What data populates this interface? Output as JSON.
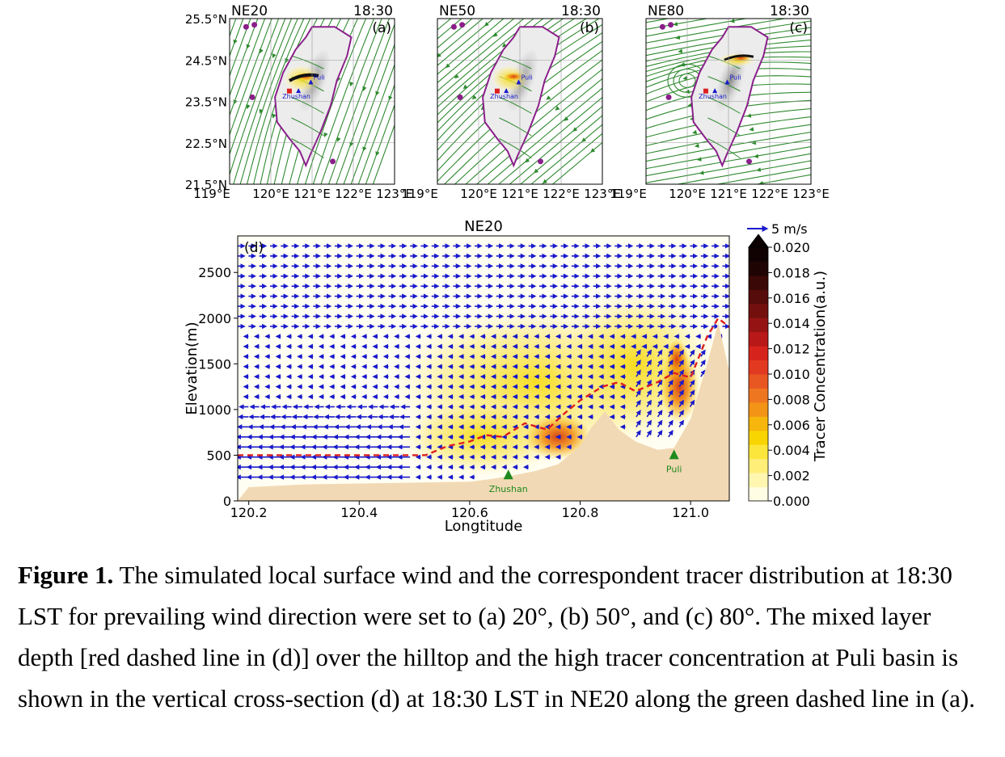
{
  "colors": {
    "land": "#f2d9b5",
    "wind": "#2f8a2f",
    "quiver": "#1a1acc",
    "mixed_layer": "#dd2020",
    "coast": "#8a1f8a",
    "station_marker": "#1e8a1e"
  },
  "chart_data": [
    {
      "type": "map",
      "panel_tag": "(a)",
      "case": "NE20",
      "time": "18:30",
      "xlim": [
        119,
        123
      ],
      "ylim": [
        21.5,
        25.5
      ],
      "x_ticks": [
        "119°E",
        "120°E",
        "121°E",
        "122°E",
        "123°E"
      ],
      "y_ticks": [
        "25.5°N",
        "24.5°N",
        "23.5°N",
        "22.5°N",
        "21.5°N"
      ],
      "prevailing_wind_deg": 20,
      "sites": [
        {
          "label": "Puli",
          "lon": 120.97,
          "lat": 23.97
        },
        {
          "label": "Zhushan",
          "lon": 120.67,
          "lat": 23.76
        }
      ]
    },
    {
      "type": "map",
      "panel_tag": "(b)",
      "case": "NE50",
      "time": "18:30",
      "xlim": [
        119,
        123
      ],
      "ylim": [
        21.5,
        25.5
      ],
      "x_ticks": [
        "119°E",
        "120°E",
        "121°E",
        "122°E",
        "123°E"
      ],
      "prevailing_wind_deg": 50,
      "sites": [
        {
          "label": "Puli",
          "lon": 120.97,
          "lat": 23.97
        },
        {
          "label": "Zhushan",
          "lon": 120.67,
          "lat": 23.76
        }
      ]
    },
    {
      "type": "map",
      "panel_tag": "(c)",
      "case": "NE80",
      "time": "18:30",
      "xlim": [
        119,
        123
      ],
      "ylim": [
        21.5,
        25.5
      ],
      "x_ticks": [
        "119°E",
        "120°E",
        "121°E",
        "122°E",
        "123°E"
      ],
      "prevailing_wind_deg": 80,
      "sites": [
        {
          "label": "Puli",
          "lon": 120.97,
          "lat": 23.97
        },
        {
          "label": "Zhushan",
          "lon": 120.67,
          "lat": 23.76
        }
      ]
    },
    {
      "type": "cross-section",
      "panel_tag": "(d)",
      "title": "NE20",
      "xlabel": "Longtitude",
      "ylabel": "Elevation(m)",
      "xlim": [
        120.18,
        121.07
      ],
      "ylim": [
        0,
        2900
      ],
      "x_ticks": [
        120.2,
        120.4,
        120.6,
        120.8,
        121.0
      ],
      "x_tick_labels": [
        "120.2",
        "120.4",
        "120.6",
        "120.8",
        "121.0"
      ],
      "y_ticks": [
        0,
        500,
        1000,
        1500,
        2000,
        2500
      ],
      "y_tick_labels": [
        "0",
        "500",
        "1000",
        "1500",
        "2000",
        "2500"
      ],
      "terrain": {
        "lon": [
          120.18,
          120.2,
          120.3,
          120.4,
          120.5,
          120.6,
          120.64,
          120.68,
          120.72,
          120.76,
          120.8,
          120.82,
          120.845,
          120.87,
          120.9,
          120.94,
          120.97,
          121.0,
          121.03,
          121.05,
          121.07
        ],
        "elev": [
          0,
          150,
          180,
          190,
          200,
          210,
          240,
          280,
          330,
          400,
          600,
          800,
          980,
          780,
          650,
          560,
          580,
          900,
          1500,
          1950,
          1420
        ]
      },
      "mixed_layer_depth": {
        "lon": [
          120.18,
          120.35,
          120.52,
          120.56,
          120.6,
          120.63,
          120.66,
          120.7,
          120.74,
          120.77,
          120.8,
          120.84,
          120.87,
          120.9,
          120.94,
          120.97,
          121.0,
          121.03,
          121.05,
          121.07
        ],
        "elev": [
          500,
          500,
          500,
          600,
          650,
          720,
          700,
          850,
          780,
          950,
          1100,
          1250,
          1300,
          1200,
          1300,
          1400,
          1350,
          1800,
          2000,
          1900
        ]
      },
      "stations": [
        {
          "label": "Zhushan",
          "lon": 120.67,
          "elev": 290
        },
        {
          "label": "Puli",
          "lon": 120.97,
          "elev": 510
        }
      ],
      "quiver_key": {
        "label": "5 m/s",
        "speed": 5
      },
      "colorbar": {
        "label": "Tracer Concentration(a.u.)",
        "ticks": [
          0.0,
          0.002,
          0.004,
          0.006,
          0.008,
          0.01,
          0.012,
          0.014,
          0.016,
          0.018,
          0.02
        ],
        "tick_labels": [
          "0.000",
          "0.002",
          "0.004",
          "0.006",
          "0.008",
          "0.010",
          "0.012",
          "0.014",
          "0.016",
          "0.018",
          "0.020"
        ],
        "range": [
          0,
          0.02
        ],
        "extend": "max"
      }
    }
  ],
  "caption": {
    "label": "Figure 1.",
    "text": " The simulated local surface wind and the correspondent tracer distribution at 18:30 LST for prevailing wind direction were set to (a) 20°, (b) 50°, and (c) 80°. The mixed layer depth [red dashed line in (d)] over the hilltop and the high tracer concentration at Puli basin is shown in the vertical cross-section (d) at 18:30 LST in NE20 along the green dashed line in (a)."
  }
}
